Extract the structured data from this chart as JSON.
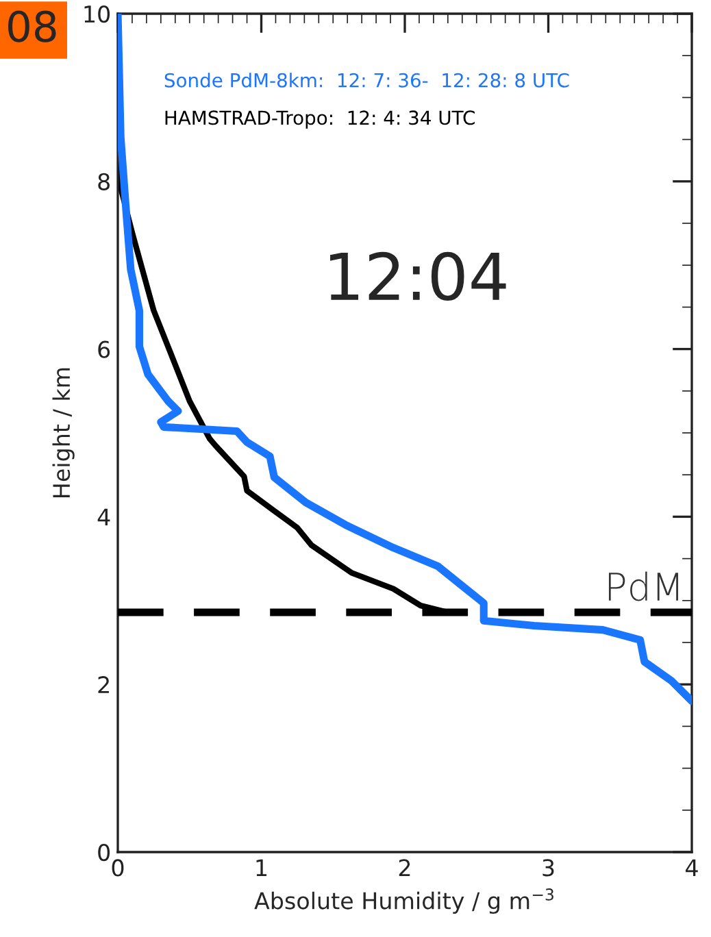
{
  "chart_data": {
    "type": "line",
    "xlabel": "Absolute Humidity / g m$^{−3}$",
    "ylabel": "Height / km",
    "xlim": [
      0,
      4
    ],
    "ylim": [
      0,
      10
    ],
    "xticks": [
      0,
      1,
      2,
      3,
      4
    ],
    "yticks": [
      0,
      2,
      4,
      6,
      8,
      {
        "value": 10,
        "label": "10"
      }
    ],
    "grid": false,
    "legend": "top left",
    "marker": "none",
    "series": [
      {
        "name": "Sonde PdM-8km:  12: 7: 36-  12: 28: 8 UTC",
        "color": "#1a75ff",
        "line_style": "solid",
        "x": [
          0,
          0.02,
          0.06,
          0.09,
          0.15,
          0.15,
          0.21,
          0.35,
          0.42,
          0.3,
          0.32,
          0.83,
          0.9,
          1.06,
          1.09,
          1.31,
          1.59,
          1.92,
          2.23,
          2.39,
          2.55,
          2.55,
          2.9,
          3.38,
          3.64,
          3.67,
          3.86,
          4.0
        ],
        "values": [
          10,
          8.53,
          7.6,
          6.95,
          6.46,
          6.03,
          5.7,
          5.38,
          5.26,
          5.13,
          5.07,
          5.02,
          4.89,
          4.72,
          4.47,
          4.17,
          3.9,
          3.63,
          3.41,
          3.19,
          2.97,
          2.76,
          2.7,
          2.65,
          2.53,
          2.27,
          2.04,
          1.8
        ]
      },
      {
        "name": "HAMSTRAD-Tropo:  12: 4: 34 UTC",
        "color": "#000000",
        "line_style": "solid",
        "x": [
          0,
          0,
          0.01,
          0.1,
          0.25,
          0.35,
          0.5,
          0.64,
          0.68,
          0.88,
          0.9,
          1.09,
          1.25,
          1.35,
          1.63,
          1.92,
          2.11,
          2.3
        ],
        "values": [
          10,
          9.07,
          7.99,
          7.39,
          6.46,
          6.03,
          5.38,
          4.93,
          4.85,
          4.48,
          4.31,
          4.07,
          3.87,
          3.66,
          3.33,
          3.14,
          2.94,
          2.86
        ]
      }
    ],
    "ref_lines": [
      {
        "axis": "y",
        "value": 2.86,
        "label": "PdM",
        "color": "#000000",
        "line_style": "dashed"
      }
    ],
    "annotations": [
      "12:04",
      "08"
    ]
  }
}
